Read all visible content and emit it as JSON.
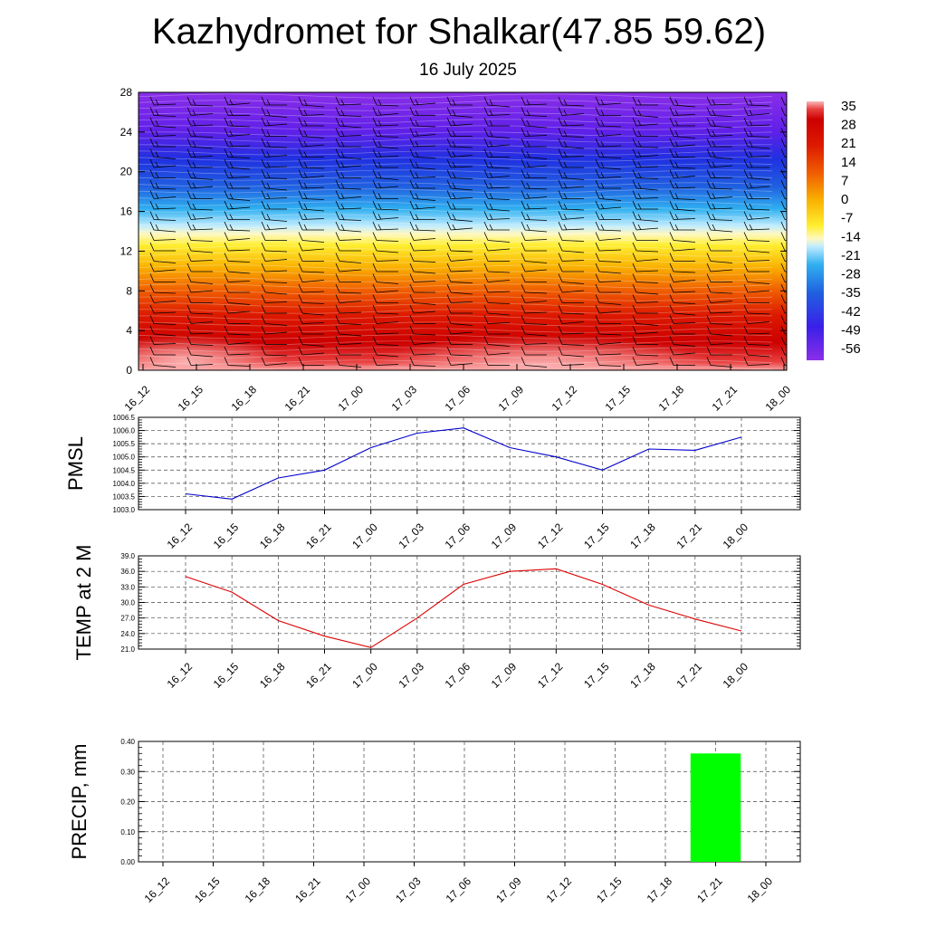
{
  "header": {
    "title": "Kazhydromet for Shalkar(47.85 59.62)",
    "date": "16 July 2025"
  },
  "colors": {
    "pmsl_line": "#0000cc",
    "temp_line": "#dd0000",
    "precip_bar": "#00ff00"
  },
  "chart_data": [
    {
      "type": "heatmap",
      "name": "cross-section",
      "x": [
        "16_12",
        "16_15",
        "16_18",
        "16_21",
        "17_00",
        "17_03",
        "17_06",
        "17_09",
        "17_12",
        "17_15",
        "17_18",
        "17_21",
        "18_00"
      ],
      "y_ticks": [
        0,
        4,
        8,
        12,
        16,
        20,
        24,
        28
      ],
      "ylim": [
        0,
        28
      ],
      "colorbar": {
        "labels": [
          "35",
          "28",
          "21",
          "14",
          "7",
          "0",
          "-7",
          "-14",
          "-21",
          "-28",
          "-35",
          "-42",
          "-49",
          "-56"
        ],
        "range": [
          -63,
          38
        ]
      }
    },
    {
      "type": "line",
      "name": "pmsl",
      "ylabel": "PMSL",
      "x": [
        "16_12",
        "16_15",
        "16_18",
        "16_21",
        "17_00",
        "17_03",
        "17_06",
        "17_09",
        "17_12",
        "17_15",
        "17_18",
        "17_21",
        "18_00"
      ],
      "values": [
        1003.6,
        1003.4,
        1004.2,
        1004.5,
        1005.35,
        1005.9,
        1006.1,
        1005.35,
        1005.0,
        1004.5,
        1005.3,
        1005.25,
        1005.75
      ],
      "ylim": [
        1003.0,
        1006.5
      ],
      "y_ticks": [
        "1003.0",
        "1003.5",
        "1004.0",
        "1004.5",
        "1005.0",
        "1005.5",
        "1006.0",
        "1006.5"
      ]
    },
    {
      "type": "line",
      "name": "temp",
      "ylabel": "TEMP at 2 M",
      "x": [
        "16_12",
        "16_15",
        "16_18",
        "16_21",
        "17_00",
        "17_03",
        "17_06",
        "17_09",
        "17_12",
        "17_15",
        "17_18",
        "17_21",
        "18_00"
      ],
      "values": [
        35.0,
        32.0,
        26.5,
        23.5,
        21.3,
        27.0,
        33.5,
        36.0,
        36.5,
        33.5,
        29.5,
        26.8,
        24.5
      ],
      "ylim": [
        21.0,
        39.0
      ],
      "y_ticks": [
        "21.0",
        "24.0",
        "27.0",
        "30.0",
        "33.0",
        "36.0",
        "39.0"
      ]
    },
    {
      "type": "bar",
      "name": "precip",
      "ylabel": "PRECIP, mm",
      "categories": [
        "16_12",
        "16_15",
        "16_18",
        "16_21",
        "17_00",
        "17_03",
        "17_06",
        "17_09",
        "17_12",
        "17_15",
        "17_18",
        "17_21",
        "18_00"
      ],
      "values": [
        0,
        0,
        0,
        0,
        0,
        0,
        0,
        0,
        0,
        0,
        0,
        0.36,
        0
      ],
      "ylim": [
        0,
        0.4
      ],
      "y_ticks": [
        "0.00",
        "0.10",
        "0.20",
        "0.30",
        "0.40"
      ]
    }
  ]
}
